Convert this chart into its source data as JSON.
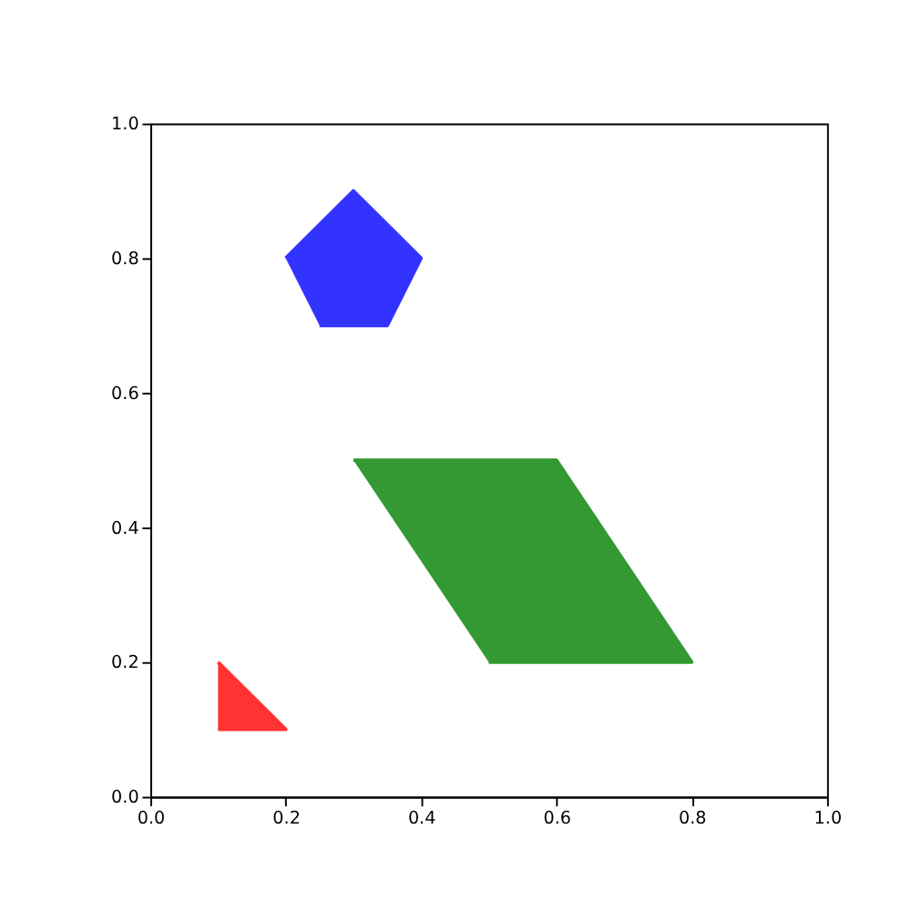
{
  "chart_data": {
    "type": "area",
    "series": [
      {
        "color": "#ff3333",
        "x": [
          0.1,
          0.2,
          0.1
        ],
        "values": [
          0.1,
          0.1,
          0.2
        ]
      },
      {
        "color": "#3333ff",
        "x": [
          0.2,
          0.3,
          0.4,
          0.35,
          0.25
        ],
        "values": [
          0.8,
          0.9,
          0.8,
          0.7,
          0.7
        ]
      },
      {
        "color": "#339933",
        "x": [
          0.3,
          0.6,
          0.8,
          0.5
        ],
        "values": [
          0.5,
          0.5,
          0.2,
          0.2
        ]
      }
    ],
    "xlim": [
      0,
      1
    ],
    "ylim": [
      0,
      1
    ],
    "xticks": [
      {
        "value": 0,
        "label": "0.0"
      },
      0.2,
      0.4,
      0.6,
      0.8,
      {
        "value": 1,
        "label": "1.0"
      }
    ],
    "yticks": [
      {
        "value": 0,
        "label": "0.0"
      },
      0.2,
      0.4,
      0.6,
      0.8,
      {
        "value": 1,
        "label": "1.0"
      }
    ],
    "grid": false
  }
}
